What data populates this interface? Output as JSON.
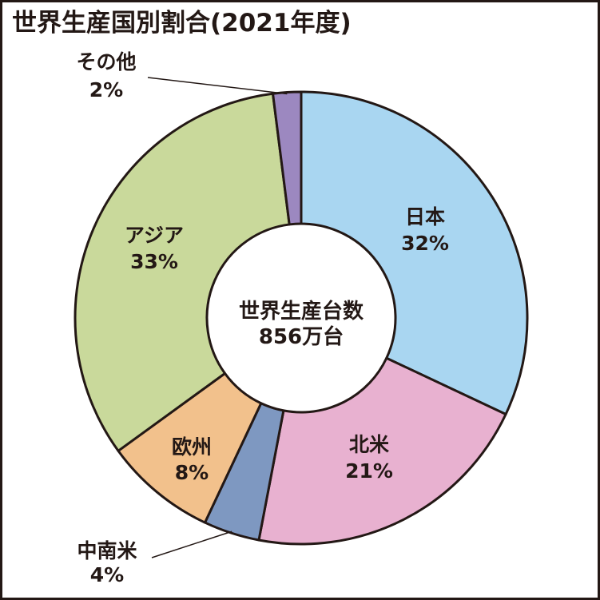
{
  "chart_data": {
    "type": "pie",
    "title": "世界生産国別割合(2021年度)",
    "center_label": [
      "世界生産台数",
      "856万台"
    ],
    "slices": [
      {
        "label": "日本",
        "value_label": "32%",
        "value": 32,
        "color": "#a9d6f1"
      },
      {
        "label": "北米",
        "value_label": "21%",
        "value": 21,
        "color": "#e8b1d0"
      },
      {
        "label": "中南米",
        "value_label": "4%",
        "value": 4,
        "color": "#7e98c1"
      },
      {
        "label": "欧州",
        "value_label": "8%",
        "value": 8,
        "color": "#f2c18c"
      },
      {
        "label": "アジア",
        "value_label": "33%",
        "value": 33,
        "color": "#c9d99b"
      },
      {
        "label": "その他",
        "value_label": "2%",
        "value": 2,
        "color": "#9c88c0"
      }
    ]
  }
}
